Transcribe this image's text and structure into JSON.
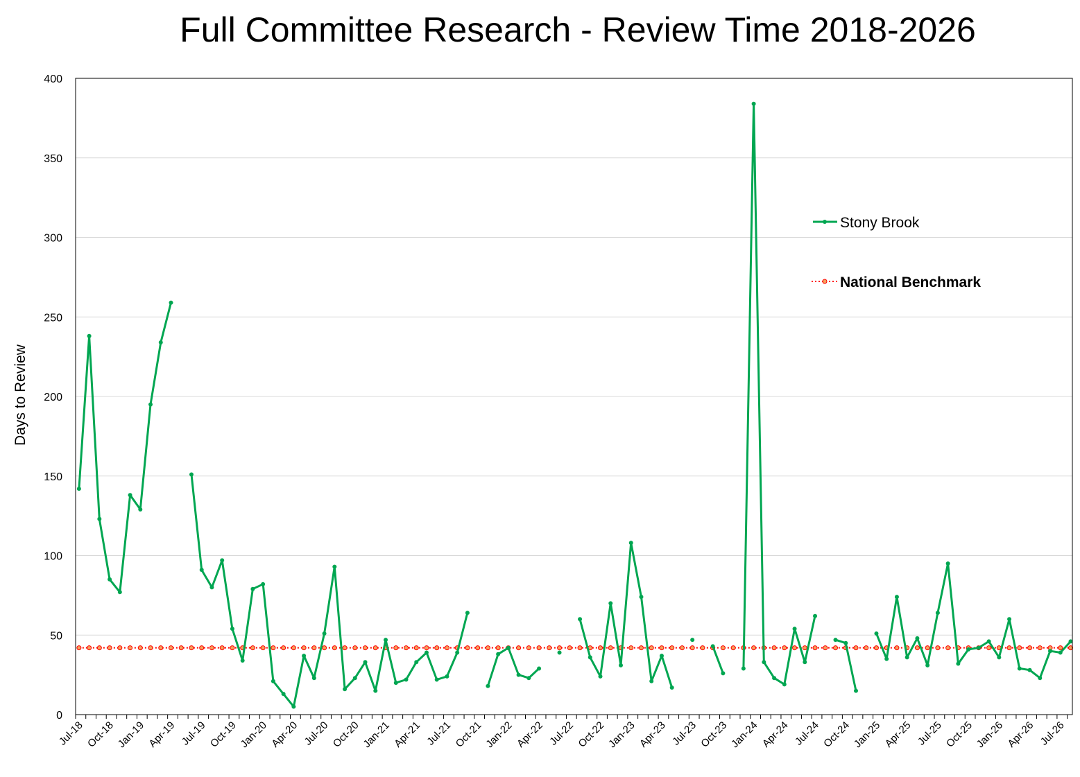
{
  "chart_data": {
    "type": "line",
    "title": "Full Committee Research - Review Time 2018-2026",
    "xlabel": "",
    "ylabel": "Days to Review",
    "ylim": [
      0,
      400
    ],
    "yticks": [
      0,
      50,
      100,
      150,
      200,
      250,
      300,
      350,
      400
    ],
    "grid": true,
    "legend_position": "right",
    "x_tick_labels": [
      "Jul-18",
      "Oct-18",
      "Jan-19",
      "Apr-19",
      "Jul-19",
      "Oct-19",
      "Jan-20",
      "Apr-20",
      "Jul-20",
      "Oct-20",
      "Jan-21",
      "Apr-21",
      "Jul-21",
      "Oct-21",
      "Jan-22",
      "Apr-22",
      "Jul-22",
      "Oct-22",
      "Jan-23",
      "Apr-23",
      "Jul-23",
      "Oct-23",
      "Jan-24",
      "Apr-24",
      "Jul-24",
      "Oct-24",
      "Jan-25",
      "Apr-25",
      "Jul-25",
      "Oct-25",
      "Jan-26",
      "Apr-26",
      "Jul-26"
    ],
    "categories": [
      "Jul-18",
      "Aug-18",
      "Sep-18",
      "Oct-18",
      "Nov-18",
      "Dec-18",
      "Jan-19",
      "Feb-19",
      "Mar-19",
      "Apr-19",
      "May-19",
      "Jun-19",
      "Jul-19",
      "Aug-19",
      "Sep-19",
      "Oct-19",
      "Nov-19",
      "Dec-19",
      "Jan-20",
      "Feb-20",
      "Mar-20",
      "Apr-20",
      "May-20",
      "Jun-20",
      "Jul-20",
      "Aug-20",
      "Sep-20",
      "Oct-20",
      "Nov-20",
      "Dec-20",
      "Jan-21",
      "Feb-21",
      "Mar-21",
      "Apr-21",
      "May-21",
      "Jun-21",
      "Jul-21",
      "Aug-21",
      "Sep-21",
      "Oct-21",
      "Nov-21",
      "Dec-21",
      "Jan-22",
      "Feb-22",
      "Mar-22",
      "Apr-22",
      "May-22",
      "Jun-22",
      "Jul-22",
      "Aug-22",
      "Sep-22",
      "Oct-22",
      "Nov-22",
      "Dec-22",
      "Jan-23",
      "Feb-23",
      "Mar-23",
      "Apr-23",
      "May-23",
      "Jun-23",
      "Jul-23",
      "Aug-23",
      "Sep-23",
      "Oct-23",
      "Nov-23",
      "Dec-23",
      "Jan-24",
      "Feb-24",
      "Mar-24",
      "Apr-24",
      "May-24",
      "Jun-24",
      "Jul-24",
      "Aug-24",
      "Sep-24",
      "Oct-24",
      "Nov-24",
      "Dec-24",
      "Jan-25",
      "Feb-25",
      "Mar-25",
      "Apr-25",
      "May-25",
      "Jun-25",
      "Jul-25",
      "Aug-25",
      "Sep-25",
      "Oct-25",
      "Nov-25",
      "Dec-25",
      "Jan-26",
      "Feb-26",
      "Mar-26",
      "Apr-26",
      "May-26",
      "Jun-26",
      "Jul-26",
      "Aug-26"
    ],
    "series": [
      {
        "name": "Stony Brook",
        "color": "#00a651",
        "marker": "circle",
        "values": [
          142,
          238,
          123,
          85,
          77,
          138,
          129,
          195,
          234,
          259,
          null,
          151,
          91,
          80,
          97,
          54,
          34,
          79,
          82,
          21,
          13,
          5,
          37,
          23,
          51,
          93,
          16,
          23,
          33,
          15,
          47,
          20,
          22,
          33,
          39,
          22,
          24,
          39,
          64,
          null,
          18,
          38,
          42,
          25,
          23,
          29,
          null,
          39,
          null,
          60,
          36,
          24,
          70,
          31,
          108,
          74,
          21,
          37,
          17,
          null,
          47,
          null,
          43,
          26,
          null,
          29,
          384,
          33,
          23,
          19,
          54,
          33,
          62,
          null,
          47,
          45,
          15,
          null,
          51,
          35,
          74,
          36,
          48,
          31,
          64,
          95,
          32,
          41,
          42,
          46,
          36,
          60,
          29,
          28,
          23,
          40,
          39,
          46
        ]
      },
      {
        "name": "National Benchmark",
        "color": "#ff0000",
        "marker": "circle",
        "style": "dotted",
        "constant_value": 42
      }
    ]
  }
}
